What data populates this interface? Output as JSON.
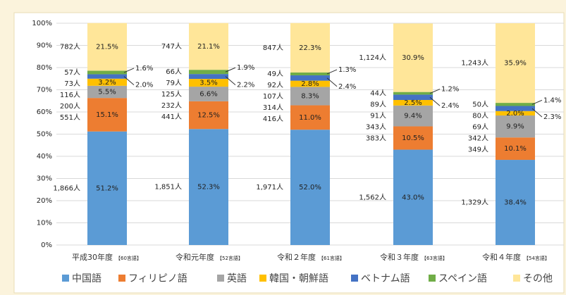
{
  "chart_data": {
    "type": "stacked_bar_100",
    "categories": [
      "平成30年度",
      "令和元年度",
      "令和２年度",
      "令和３年度",
      "令和４年度"
    ],
    "category_notes": [
      "【60言語】",
      "【52言語】",
      "【61言語】",
      "【63言語】",
      "【54言語】"
    ],
    "series": [
      {
        "name": "中国語",
        "color": "#5b9bd5",
        "values": [
          51.2,
          52.3,
          52.0,
          43.0,
          38.4
        ],
        "value_labels": [
          "51.2%",
          "52.3%",
          "52.0%",
          "43.0%",
          "38.4%"
        ],
        "count_labels": [
          "1,866人",
          "1,851人",
          "1,971人",
          "1,562人",
          "1,329人"
        ]
      },
      {
        "name": "フィリピノ語",
        "color": "#ed7d31",
        "values": [
          15.1,
          12.5,
          11.0,
          10.5,
          10.1
        ],
        "value_labels": [
          "15.1%",
          "12.5%",
          "11.0%",
          "10.5%",
          "10.1%"
        ],
        "count_labels": [
          "551人",
          "441人",
          "416人",
          "383人",
          "349人"
        ]
      },
      {
        "name": "英語",
        "color": "#a5a5a5",
        "values": [
          5.5,
          6.6,
          8.3,
          9.4,
          9.9
        ],
        "value_labels": [
          "5.5%",
          "6.6%",
          "8.3%",
          "9.4%",
          "9.9%"
        ],
        "count_labels": [
          "200人",
          "232人",
          "314人",
          "343人",
          "342人"
        ]
      },
      {
        "name": "韓国・朝鮮語",
        "color": "#ffc000",
        "values": [
          3.2,
          3.5,
          2.8,
          2.5,
          2.0
        ],
        "value_labels": [
          "3.2%",
          "3.5%",
          "2.8%",
          "2.5%",
          "2.0%"
        ],
        "count_labels": [
          "116人",
          "125人",
          "107人",
          "91人",
          "69人"
        ]
      },
      {
        "name": "ベトナム語",
        "color": "#4472c4",
        "values": [
          2.0,
          2.2,
          2.4,
          2.4,
          2.3
        ],
        "value_labels": [
          "2.0%",
          "2.2%",
          "2.4%",
          "2.4%",
          "2.3%"
        ],
        "count_labels": [
          "73人",
          "79人",
          "92人",
          "89人",
          "80人"
        ],
        "outside": true
      },
      {
        "name": "スペイン語",
        "color": "#70ad47",
        "values": [
          1.6,
          1.9,
          1.3,
          1.2,
          1.4
        ],
        "value_labels": [
          "1.6%",
          "1.9%",
          "1.3%",
          "1.2%",
          "1.4%"
        ],
        "count_labels": [
          "57人",
          "66人",
          "49人",
          "44人",
          "50人"
        ],
        "outside": true
      },
      {
        "name": "その他",
        "color": "#ffe699",
        "values": [
          21.5,
          21.1,
          22.3,
          30.9,
          35.9
        ],
        "value_labels": [
          "21.5%",
          "21.1%",
          "22.3%",
          "30.9%",
          "35.9%"
        ],
        "count_labels": [
          "782人",
          "747人",
          "847人",
          "1,124人",
          "1,243人"
        ]
      }
    ],
    "ylim": [
      0,
      100
    ],
    "yticks": [
      {
        "value": 0,
        "label": "0%"
      },
      {
        "value": 10,
        "label": "10%"
      },
      {
        "value": 20,
        "label": "20%"
      },
      {
        "value": 30,
        "label": "30%"
      },
      {
        "value": 40,
        "label": "40%"
      },
      {
        "value": 50,
        "label": "50%"
      },
      {
        "value": 60,
        "label": "60%"
      },
      {
        "value": 70,
        "label": "70%"
      },
      {
        "value": 80,
        "label": "80%"
      },
      {
        "value": 90,
        "label": "90%"
      },
      {
        "value": 100,
        "label": "100%"
      }
    ],
    "grid": true,
    "legend": "bottom"
  }
}
